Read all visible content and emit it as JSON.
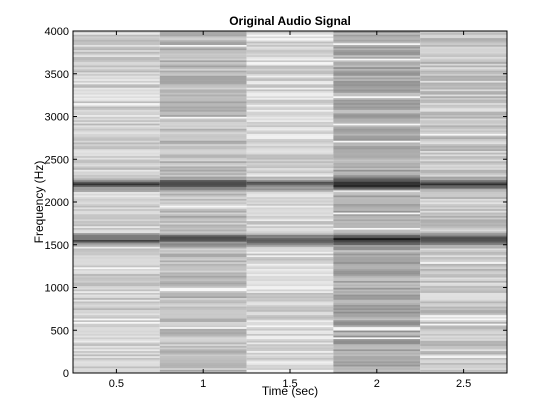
{
  "chart_data": {
    "type": "heatmap",
    "title": "Original Audio Signal",
    "xlabel": "Time (sec)",
    "ylabel": "Frequency (Hz)",
    "xlim": [
      0.25,
      2.75
    ],
    "ylim": [
      0,
      4000
    ],
    "x_ticks": [
      0.5,
      1,
      1.5,
      2,
      2.5
    ],
    "x_tick_labels": [
      "0.5",
      "1",
      "1.5",
      "2",
      "2.5"
    ],
    "y_ticks": [
      0,
      500,
      1000,
      1500,
      2000,
      2500,
      3000,
      3500,
      4000
    ],
    "y_tick_labels": [
      "0",
      "500",
      "1000",
      "1500",
      "2000",
      "2500",
      "3000",
      "3500",
      "4000"
    ],
    "colormap": "gray",
    "time_segments": [
      {
        "start": 0.25,
        "end": 0.75
      },
      {
        "start": 0.75,
        "end": 1.25
      },
      {
        "start": 1.25,
        "end": 1.75
      },
      {
        "start": 1.75,
        "end": 2.25
      },
      {
        "start": 2.25,
        "end": 2.75
      }
    ],
    "segment_base_gray": [
      0.82,
      0.74,
      0.84,
      0.66,
      0.78
    ],
    "dominant_frequencies_hz": [
      1560,
      2210
    ],
    "grid": false
  }
}
